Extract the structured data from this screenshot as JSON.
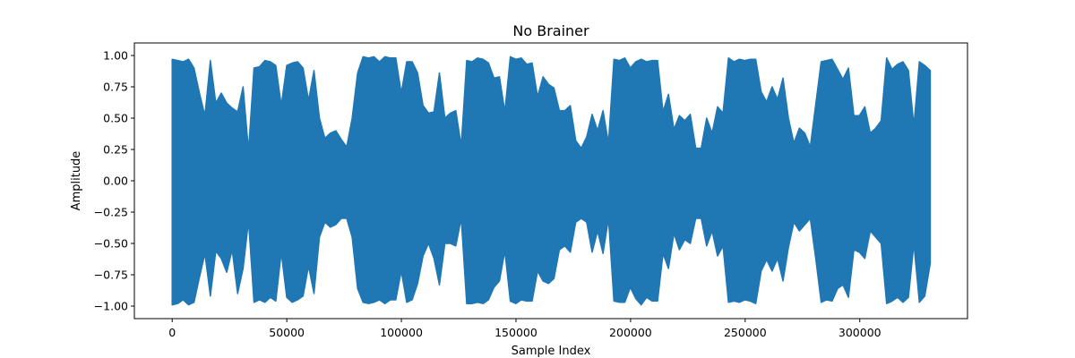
{
  "chart_data": {
    "type": "line",
    "title": "No Brainer",
    "xlabel": "Sample Index",
    "ylabel": "Amplitude",
    "xlim": [
      -16500,
      347000
    ],
    "ylim": [
      -1.1,
      1.1
    ],
    "xticks": [
      0,
      50000,
      100000,
      150000,
      200000,
      250000,
      300000
    ],
    "yticks": [
      -1.0,
      -0.75,
      -0.5,
      -0.25,
      0.0,
      0.25,
      0.5,
      0.75,
      1.0
    ],
    "xtick_labels": [
      "0",
      "50000",
      "100000",
      "150000",
      "200000",
      "250000",
      "300000"
    ],
    "ytick_labels": [
      "−1.00",
      "−0.75",
      "−0.50",
      "−0.25",
      "0.00",
      "0.25",
      "0.50",
      "0.75",
      "1.00"
    ],
    "grid": false,
    "legend": "none",
    "series": [
      {
        "color": "#1f77b4",
        "x_range": [
          0,
          330750
        ],
        "envelope_step": 2500,
        "upper": [
          0.97,
          0.96,
          0.95,
          0.97,
          0.9,
          0.7,
          0.52,
          0.96,
          0.62,
          0.7,
          0.62,
          0.58,
          0.55,
          0.75,
          0.24,
          0.9,
          0.91,
          0.96,
          0.95,
          0.92,
          0.6,
          0.92,
          0.94,
          0.95,
          0.9,
          0.64,
          0.88,
          0.5,
          0.34,
          0.38,
          0.4,
          0.33,
          0.27,
          0.5,
          0.86,
          0.99,
          0.98,
          0.99,
          0.95,
          0.99,
          0.98,
          0.98,
          0.7,
          0.95,
          0.95,
          0.86,
          0.6,
          0.54,
          0.55,
          0.86,
          0.5,
          0.54,
          0.56,
          0.28,
          0.96,
          0.95,
          0.98,
          0.97,
          0.94,
          0.82,
          0.83,
          0.55,
          0.99,
          0.97,
          0.98,
          0.93,
          0.94,
          0.67,
          0.83,
          0.77,
          0.74,
          0.56,
          0.56,
          0.6,
          0.32,
          0.26,
          0.35,
          0.53,
          0.4,
          0.56,
          0.3,
          0.97,
          0.96,
          0.98,
          0.9,
          0.95,
          0.97,
          0.95,
          0.96,
          0.96,
          0.55,
          0.69,
          0.41,
          0.52,
          0.48,
          0.53,
          0.26,
          0.26,
          0.5,
          0.38,
          0.59,
          0.54,
          0.98,
          0.95,
          0.97,
          0.96,
          0.97,
          0.97,
          0.71,
          0.63,
          0.75,
          0.65,
          0.82,
          0.5,
          0.3,
          0.42,
          0.38,
          0.27,
          0.61,
          0.95,
          0.96,
          0.97,
          0.89,
          0.81,
          0.9,
          0.52,
          0.52,
          0.59,
          0.38,
          0.42,
          0.48,
          0.98,
          0.89,
          0.93,
          0.95,
          0.88,
          0.44,
          0.95,
          0.92,
          0.88
        ],
        "lower": [
          -0.99,
          -0.98,
          -0.95,
          -0.99,
          -0.97,
          -0.77,
          -0.58,
          -0.92,
          -0.56,
          -0.62,
          -0.73,
          -0.55,
          -0.9,
          -0.7,
          -0.32,
          -0.97,
          -0.95,
          -0.97,
          -0.93,
          -0.96,
          -0.57,
          -0.93,
          -0.97,
          -0.95,
          -0.92,
          -0.68,
          -0.9,
          -0.45,
          -0.33,
          -0.37,
          -0.35,
          -0.3,
          -0.3,
          -0.45,
          -0.86,
          -0.97,
          -0.98,
          -0.97,
          -0.95,
          -0.98,
          -0.95,
          -0.95,
          -0.72,
          -0.97,
          -0.95,
          -0.82,
          -0.6,
          -0.5,
          -0.62,
          -0.83,
          -0.5,
          -0.5,
          -0.52,
          -0.3,
          -0.98,
          -0.98,
          -0.97,
          -0.98,
          -0.95,
          -0.85,
          -0.8,
          -0.56,
          -0.96,
          -0.98,
          -0.95,
          -0.96,
          -0.96,
          -0.72,
          -0.8,
          -0.82,
          -0.78,
          -0.55,
          -0.52,
          -0.57,
          -0.33,
          -0.3,
          -0.33,
          -0.57,
          -0.4,
          -0.58,
          -0.3,
          -0.96,
          -0.97,
          -0.97,
          -0.85,
          -0.94,
          -0.99,
          -0.93,
          -0.96,
          -0.96,
          -0.58,
          -0.7,
          -0.42,
          -0.55,
          -0.47,
          -0.5,
          -0.3,
          -0.3,
          -0.52,
          -0.4,
          -0.6,
          -0.52,
          -0.97,
          -0.96,
          -0.97,
          -0.95,
          -0.96,
          -0.98,
          -0.72,
          -0.63,
          -0.72,
          -0.62,
          -0.8,
          -0.53,
          -0.33,
          -0.4,
          -0.35,
          -0.3,
          -0.62,
          -0.97,
          -0.95,
          -0.96,
          -0.86,
          -0.83,
          -0.93,
          -0.55,
          -0.57,
          -0.62,
          -0.4,
          -0.45,
          -0.5,
          -0.98,
          -0.96,
          -0.93,
          -0.97,
          -0.93,
          -0.5,
          -0.97,
          -0.92,
          -0.66
        ]
      }
    ]
  }
}
